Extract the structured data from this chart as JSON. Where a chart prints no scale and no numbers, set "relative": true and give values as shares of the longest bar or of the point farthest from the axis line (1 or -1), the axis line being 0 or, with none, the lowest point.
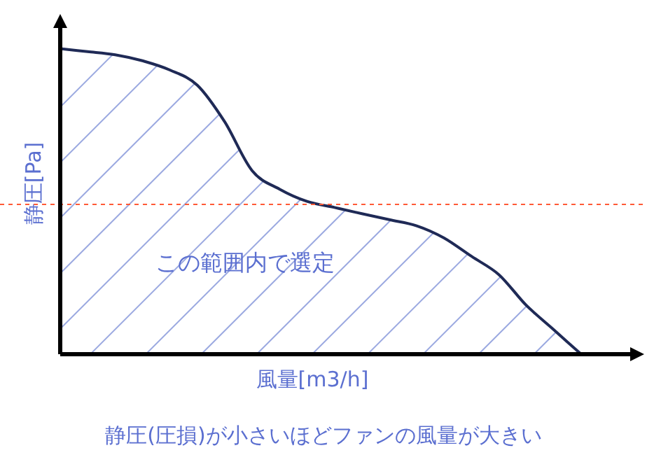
{
  "chart_data": {
    "type": "area",
    "relative": true,
    "xlabel": "風量[m3/h]",
    "ylabel": "静圧[Pa]",
    "categories": [
      null,
      null,
      null,
      null,
      null,
      null,
      null,
      null,
      null,
      null,
      null,
      null,
      null,
      null,
      null,
      null,
      null,
      null,
      null,
      null
    ],
    "series": [
      {
        "color": "#1f2a56",
        "values": [
          1.0,
          0.99,
          0.98,
          0.96,
          0.93,
          0.88,
          0.76,
          0.6,
          0.54,
          0.5,
          0.48,
          0.46,
          0.44,
          0.42,
          0.38,
          0.32,
          0.26,
          0.16,
          0.08,
          0
        ]
      }
    ],
    "ref_lines": [
      {
        "axis": "y",
        "value": 0.49,
        "color": "#ff5a36",
        "line_style": "dashed"
      }
    ],
    "annotations": [
      "この範囲内で選定",
      "静圧(圧損)が小さいほどファンの風量が大きい"
    ]
  }
}
